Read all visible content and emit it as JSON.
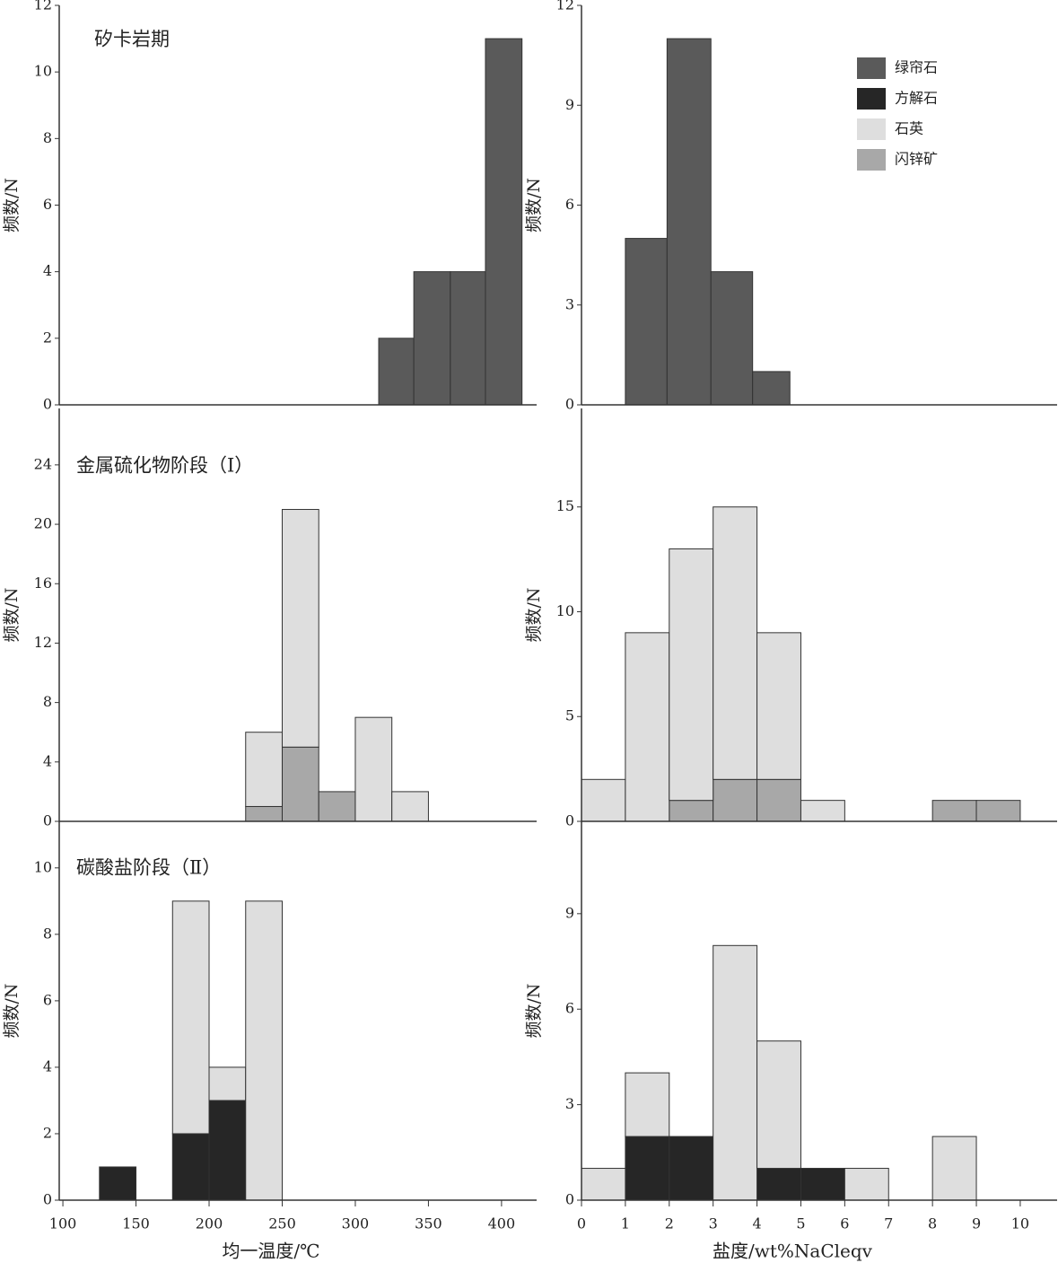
{
  "chart_data": [
    {
      "type": "histogram",
      "title": "矽卡岩期",
      "ylabel": "频数/N",
      "bins": [
        316,
        340,
        365,
        389,
        414
      ],
      "series": [
        {
          "name": "绿帘石",
          "color": "#5a5a5a",
          "values": [
            2,
            4,
            4,
            11
          ]
        }
      ],
      "xlim": [
        97.5,
        424
      ],
      "ylim": [
        0,
        12
      ],
      "yticks": [
        0,
        2,
        4,
        6,
        8,
        10,
        12
      ]
    },
    {
      "type": "histogram",
      "ylabel": "频数/N",
      "bins": [
        1,
        1.95,
        2.95,
        3.9,
        4.75
      ],
      "series": [
        {
          "name": "绿帘石",
          "color": "#5a5a5a",
          "values": [
            5,
            11,
            4,
            1
          ]
        }
      ],
      "legend": [
        {
          "name": "绿帘石",
          "color": "#5a5a5a"
        },
        {
          "name": "方解石",
          "color": "#262626"
        },
        {
          "name": "石英",
          "color": "#dedede"
        },
        {
          "name": "闪锌矿",
          "color": "#a8a8a8"
        }
      ],
      "xlim": [
        0,
        10.84
      ],
      "ylim": [
        0,
        12
      ],
      "yticks": [
        0,
        3,
        6,
        9,
        12
      ]
    },
    {
      "type": "histogram",
      "title": "金属硫化物阶段（Ⅰ）",
      "ylabel": "频数/N",
      "bins": [
        225,
        250,
        275,
        300,
        325,
        350
      ],
      "series": [
        {
          "name": "闪锌矿",
          "color": "#a8a8a8",
          "values": [
            1,
            5,
            2,
            0,
            0
          ]
        },
        {
          "name": "石英",
          "color": "#dedede",
          "values": [
            5,
            16,
            0,
            7,
            2
          ]
        }
      ],
      "xlim": [
        97.5,
        424
      ],
      "ylim": [
        0,
        27.8
      ],
      "yticks": [
        0,
        4,
        8,
        12,
        16,
        20,
        24
      ]
    },
    {
      "type": "histogram",
      "ylabel": "频数/N",
      "bins": [
        0,
        1,
        2,
        3,
        4,
        5,
        6,
        7,
        8,
        9,
        10
      ],
      "series": [
        {
          "name": "闪锌矿",
          "color": "#a8a8a8",
          "values": [
            0,
            0,
            1,
            2,
            2,
            0,
            0,
            0,
            1,
            1
          ]
        },
        {
          "name": "石英",
          "color": "#dedede",
          "values": [
            2,
            9,
            12,
            13,
            7,
            1,
            0,
            0,
            0,
            0
          ]
        }
      ],
      "xlim": [
        0,
        10.84
      ],
      "ylim": [
        0,
        19.7
      ],
      "yticks": [
        0,
        5,
        10,
        15
      ]
    },
    {
      "type": "histogram",
      "title": "碳酸盐阶段（Ⅱ）",
      "ylabel": "频数/N",
      "xlabel": "均一温度/℃",
      "bins": [
        125,
        150,
        175,
        200,
        225,
        250
      ],
      "series": [
        {
          "name": "方解石",
          "color": "#262626",
          "values": [
            1,
            0,
            2,
            3,
            0
          ]
        },
        {
          "name": "石英",
          "color": "#dedede",
          "values": [
            0,
            0,
            7,
            1,
            9
          ]
        }
      ],
      "xlim": [
        97.5,
        424
      ],
      "ylim": [
        0,
        11.4
      ],
      "yticks": [
        0,
        2,
        4,
        6,
        8,
        10
      ],
      "xticks": [
        100,
        150,
        200,
        250,
        300,
        350,
        400
      ]
    },
    {
      "type": "histogram",
      "ylabel": "频数/N",
      "xlabel": "盐度/wt%NaCleqv",
      "bins": [
        0,
        1,
        2,
        3,
        4,
        5,
        6,
        7,
        8,
        9
      ],
      "series": [
        {
          "name": "方解石",
          "color": "#262626",
          "values": [
            0,
            2,
            2,
            0,
            1,
            1,
            0,
            0,
            0
          ]
        },
        {
          "name": "石英",
          "color": "#dedede",
          "values": [
            1,
            2,
            0,
            8,
            4,
            0,
            1,
            0,
            2
          ]
        }
      ],
      "xlim": [
        0,
        10.84
      ],
      "ylim": [
        0,
        11.9
      ],
      "yticks": [
        0,
        3,
        6,
        9
      ],
      "xticks": [
        0,
        1,
        2,
        3,
        4,
        5,
        6,
        7,
        8,
        9,
        10
      ]
    }
  ]
}
